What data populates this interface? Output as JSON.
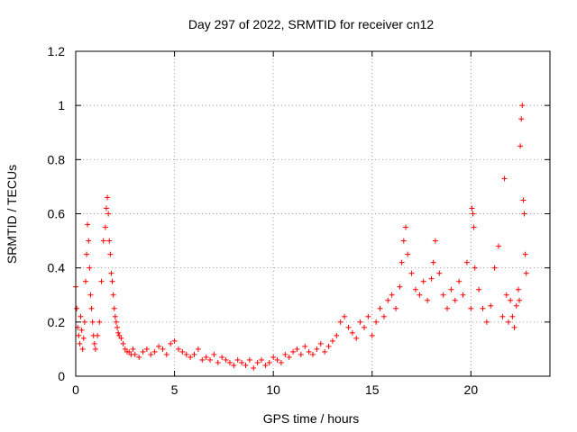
{
  "chart_data": {
    "type": "scatter",
    "title": "Day 297 of 2022, SRMTID for receiver cn12",
    "xlabel": "GPS time / hours",
    "ylabel": "SRMTID / TECUs",
    "xlim": [
      0,
      24
    ],
    "ylim": [
      0,
      1.2
    ],
    "x_ticks": [
      0,
      5,
      10,
      15,
      20
    ],
    "x_tick_labels": [
      "0",
      "5",
      "10",
      "15",
      "20"
    ],
    "y_ticks": [
      0,
      0.2,
      0.4,
      0.6,
      0.8,
      1.0,
      1.2
    ],
    "y_tick_labels": [
      "0",
      "0.2",
      "0.4",
      "0.6",
      "0.8",
      "1",
      "1.2"
    ],
    "grid": true,
    "marker": "plus",
    "series": [
      {
        "name": "cn12",
        "color": "#ff0000",
        "x": [
          0.0,
          0.05,
          0.1,
          0.15,
          0.2,
          0.25,
          0.3,
          0.35,
          0.4,
          0.45,
          0.5,
          0.55,
          0.6,
          0.65,
          0.7,
          0.75,
          0.8,
          0.85,
          0.9,
          0.95,
          1.0,
          1.1,
          1.2,
          1.3,
          1.4,
          1.5,
          1.55,
          1.6,
          1.65,
          1.7,
          1.75,
          1.8,
          1.85,
          1.9,
          1.95,
          2.0,
          2.05,
          2.1,
          2.15,
          2.2,
          2.3,
          2.4,
          2.5,
          2.6,
          2.7,
          2.8,
          2.9,
          3.0,
          3.2,
          3.4,
          3.6,
          3.8,
          4.0,
          4.2,
          4.4,
          4.6,
          4.8,
          5.0,
          5.2,
          5.4,
          5.6,
          5.8,
          6.0,
          6.2,
          6.4,
          6.6,
          6.8,
          7.0,
          7.2,
          7.4,
          7.6,
          7.8,
          8.0,
          8.2,
          8.4,
          8.6,
          8.8,
          9.0,
          9.2,
          9.4,
          9.6,
          9.8,
          10.0,
          10.2,
          10.4,
          10.6,
          10.8,
          11.0,
          11.2,
          11.4,
          11.6,
          11.8,
          12.0,
          12.2,
          12.4,
          12.6,
          12.8,
          13.0,
          13.2,
          13.4,
          13.6,
          13.8,
          14.0,
          14.2,
          14.4,
          14.6,
          14.8,
          15.0,
          15.2,
          15.4,
          15.6,
          15.8,
          16.0,
          16.2,
          16.4,
          16.5,
          16.6,
          16.7,
          16.8,
          17.0,
          17.2,
          17.4,
          17.6,
          17.8,
          18.0,
          18.1,
          18.2,
          18.4,
          18.6,
          18.8,
          19.0,
          19.2,
          19.4,
          19.6,
          19.8,
          20.0,
          20.05,
          20.1,
          20.15,
          20.2,
          20.4,
          20.6,
          20.8,
          21.0,
          21.2,
          21.4,
          21.6,
          21.7,
          21.8,
          21.9,
          22.0,
          22.1,
          22.2,
          22.3,
          22.4,
          22.45,
          22.5,
          22.55,
          22.6,
          22.65,
          22.7,
          22.75,
          22.8
        ],
        "y": [
          0.33,
          0.25,
          0.18,
          0.15,
          0.12,
          0.22,
          0.17,
          0.1,
          0.14,
          0.2,
          0.35,
          0.45,
          0.56,
          0.5,
          0.4,
          0.3,
          0.25,
          0.2,
          0.15,
          0.12,
          0.1,
          0.15,
          0.2,
          0.35,
          0.5,
          0.55,
          0.62,
          0.66,
          0.6,
          0.5,
          0.45,
          0.38,
          0.35,
          0.3,
          0.25,
          0.22,
          0.2,
          0.18,
          0.16,
          0.15,
          0.14,
          0.12,
          0.1,
          0.09,
          0.09,
          0.08,
          0.1,
          0.08,
          0.07,
          0.09,
          0.1,
          0.08,
          0.09,
          0.11,
          0.1,
          0.08,
          0.12,
          0.13,
          0.1,
          0.09,
          0.08,
          0.07,
          0.08,
          0.1,
          0.06,
          0.07,
          0.06,
          0.08,
          0.05,
          0.07,
          0.06,
          0.05,
          0.04,
          0.06,
          0.05,
          0.04,
          0.06,
          0.03,
          0.05,
          0.06,
          0.04,
          0.05,
          0.07,
          0.06,
          0.05,
          0.08,
          0.07,
          0.09,
          0.1,
          0.08,
          0.11,
          0.09,
          0.08,
          0.1,
          0.12,
          0.09,
          0.11,
          0.13,
          0.15,
          0.2,
          0.22,
          0.18,
          0.16,
          0.14,
          0.2,
          0.18,
          0.22,
          0.15,
          0.2,
          0.25,
          0.22,
          0.28,
          0.3,
          0.25,
          0.33,
          0.42,
          0.5,
          0.55,
          0.45,
          0.38,
          0.32,
          0.3,
          0.35,
          0.28,
          0.36,
          0.42,
          0.5,
          0.38,
          0.3,
          0.25,
          0.32,
          0.28,
          0.35,
          0.3,
          0.42,
          0.25,
          0.62,
          0.6,
          0.55,
          0.4,
          0.32,
          0.25,
          0.2,
          0.26,
          0.4,
          0.48,
          0.22,
          0.73,
          0.3,
          0.2,
          0.28,
          0.22,
          0.18,
          0.26,
          0.32,
          0.28,
          0.85,
          0.95,
          1.0,
          0.65,
          0.6,
          0.45,
          0.38
        ]
      }
    ]
  }
}
